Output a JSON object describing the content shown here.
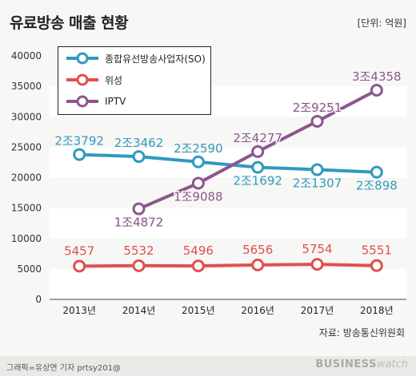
{
  "title": "유료방송 매출 현황",
  "unit": "[단위: 억원]",
  "source": "자료: 방송통신위원회",
  "credit": "그래픽=유상연 기자 prtsy201@",
  "brand": {
    "part1": "BUSINESS",
    "part2": "watch"
  },
  "colors": {
    "so": "#2f9bbd",
    "sat": "#e05050",
    "iptv": "#8b5690",
    "band": "#ffffff",
    "bg": "#f7f7f5"
  },
  "chart_data": {
    "type": "line",
    "categories": [
      "2013년",
      "2014년",
      "2015년",
      "2016년",
      "2017년",
      "2018년"
    ],
    "ylim": [
      0,
      40000
    ],
    "yticks": [
      "0",
      "5000",
      "10000",
      "15000",
      "20000",
      "25000",
      "30000",
      "35000",
      "40000"
    ],
    "series": [
      {
        "name": "종합유선방송사업자(SO)",
        "color": "#2f9bbd",
        "values": [
          23792,
          23462,
          22590,
          21692,
          21307,
          20898
        ],
        "labels": [
          "2조3792",
          "2조3462",
          "2조2590",
          "2조1692",
          "2조1307",
          "2조898"
        ]
      },
      {
        "name": "위성",
        "color": "#e05050",
        "values": [
          5457,
          5532,
          5496,
          5656,
          5754,
          5551
        ],
        "labels": [
          "5457",
          "5532",
          "5496",
          "5656",
          "5754",
          "5551"
        ]
      },
      {
        "name": "IPTV",
        "color": "#8b5690",
        "values": [
          null,
          14872,
          19088,
          24277,
          29251,
          34358
        ],
        "labels": [
          "",
          "1조4872",
          "1조9088",
          "2조4277",
          "2조9251",
          "3조4358"
        ]
      }
    ]
  }
}
